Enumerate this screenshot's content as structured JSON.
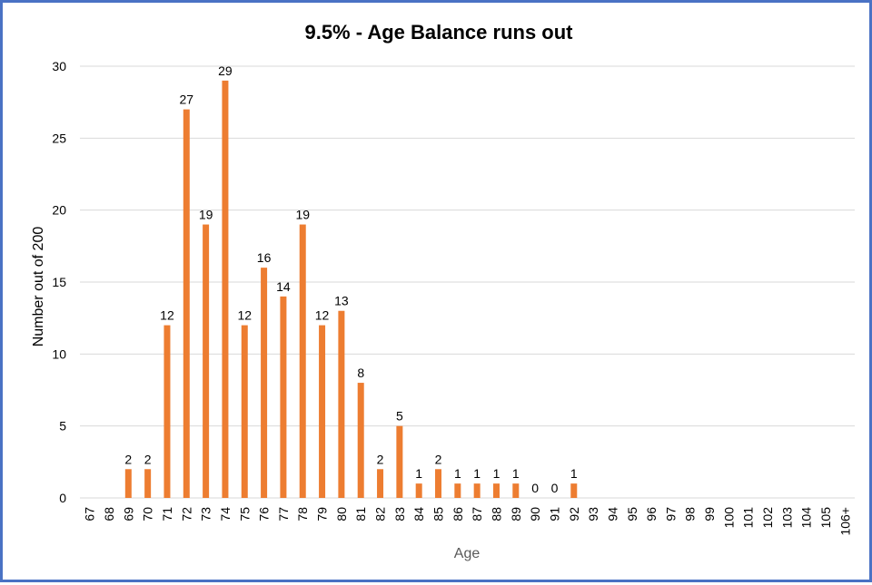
{
  "chart_data": {
    "type": "bar",
    "title": "9.5% - Age Balance runs out",
    "xlabel": "Age",
    "ylabel": "Number out of 200",
    "ylim": [
      0,
      30
    ],
    "yticks": [
      0,
      5,
      10,
      15,
      20,
      25,
      30
    ],
    "grid": true,
    "legend": "none",
    "bar_color": "#ed7d31",
    "categories": [
      "67",
      "68",
      "69",
      "70",
      "71",
      "72",
      "73",
      "74",
      "75",
      "76",
      "77",
      "78",
      "79",
      "80",
      "81",
      "82",
      "83",
      "84",
      "85",
      "86",
      "87",
      "88",
      "89",
      "90",
      "91",
      "92",
      "93",
      "94",
      "95",
      "96",
      "97",
      "98",
      "99",
      "100",
      "101",
      "102",
      "103",
      "104",
      "105",
      "106+"
    ],
    "values": [
      0,
      0,
      2,
      2,
      12,
      27,
      19,
      29,
      12,
      16,
      14,
      19,
      12,
      13,
      8,
      2,
      5,
      1,
      2,
      1,
      1,
      1,
      1,
      0,
      0,
      1,
      0,
      0,
      0,
      0,
      0,
      0,
      0,
      0,
      0,
      0,
      0,
      0,
      0,
      0
    ]
  }
}
